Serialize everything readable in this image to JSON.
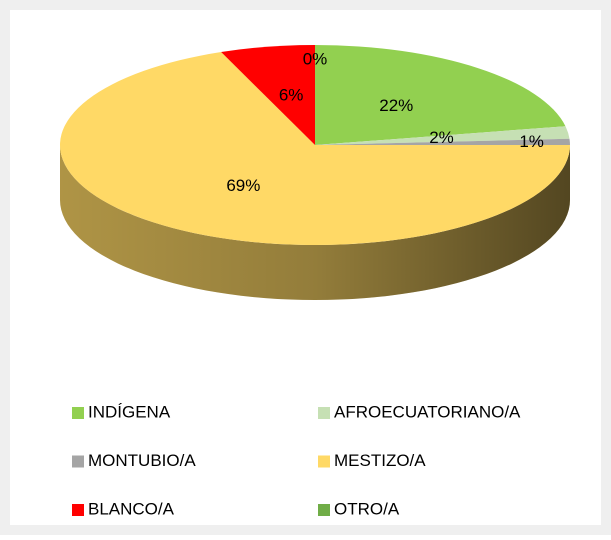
{
  "chart_data": {
    "type": "pie3d",
    "categories": [
      "INDÍGENA",
      "AFROECUATORIANO/A",
      "MONTUBIO/A",
      "MESTIZO/A",
      "BLANCO/A",
      "OTRO/A"
    ],
    "values": [
      22,
      2,
      1,
      69,
      6,
      0
    ],
    "value_labels": [
      "22%",
      "2%",
      "1%",
      "69%",
      "6%",
      "0%"
    ],
    "colors": [
      "#92d050",
      "#c6e0b4",
      "#a5a5a5",
      "#ffd966",
      "#ff0000",
      "#70ad47"
    ],
    "legend": "bottom"
  }
}
